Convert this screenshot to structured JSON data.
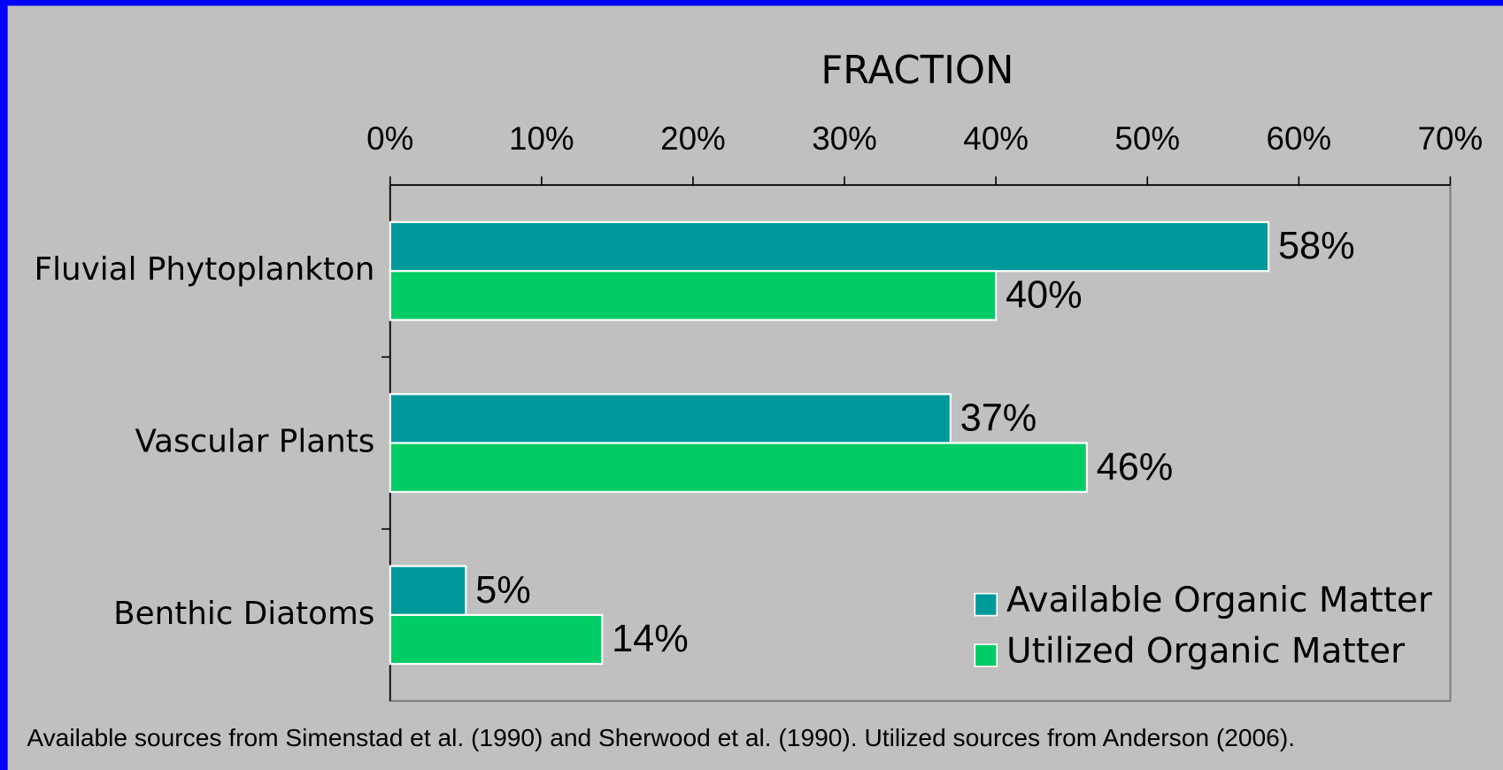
{
  "chart_data": {
    "type": "bar",
    "orientation": "horizontal",
    "title": "FRACTION",
    "categories": [
      "Fluvial Phytoplankton",
      "Vascular Plants",
      "Benthic Diatoms"
    ],
    "series": [
      {
        "name": "Available Organic Matter",
        "color": "#009999",
        "values": [
          58,
          37,
          5
        ],
        "value_labels": [
          "58%",
          "37%",
          "5%"
        ]
      },
      {
        "name": "Utilized Organic Matter",
        "color": "#00cc66",
        "values": [
          40,
          46,
          14
        ],
        "value_labels": [
          "40%",
          "46%",
          "14%"
        ]
      }
    ],
    "xlim": [
      0,
      70
    ],
    "xticks": [
      {
        "value": 0,
        "label": "0%"
      },
      {
        "value": 10,
        "label": "10%"
      },
      {
        "value": 20,
        "label": "20%"
      },
      {
        "value": 30,
        "label": "30%"
      },
      {
        "value": 40,
        "label": "40%"
      },
      {
        "value": 50,
        "label": "50%"
      },
      {
        "value": 60,
        "label": "60%"
      },
      {
        "value": 70,
        "label": "70%"
      }
    ],
    "legend": "lower right",
    "footnote": "Available sources from Simenstad et al. (1990) and Sherwood et al. (1990).  Utilized sources from Anderson (2006)."
  }
}
